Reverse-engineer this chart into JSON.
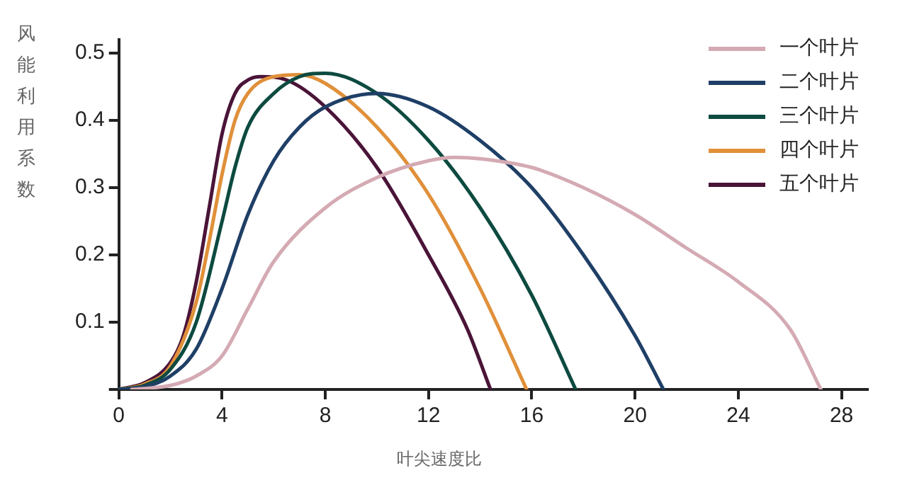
{
  "chart_data": {
    "type": "line",
    "xlabel": "叶尖速度比",
    "ylabel": "风能利用系数",
    "xlim": [
      0,
      29
    ],
    "ylim": [
      0,
      0.52
    ],
    "xticks": [
      0,
      4,
      8,
      12,
      16,
      20,
      24,
      28
    ],
    "yticks": [
      {
        "value": 0,
        "label": null
      },
      0.1,
      0.2,
      0.3,
      0.4,
      0.5
    ],
    "grid": false,
    "legend": "top right",
    "marker": "none",
    "line_style": "solid",
    "series": [
      {
        "name": "一个叶片",
        "color": "#d4aab3",
        "x": [
          0.5,
          2,
          3,
          4,
          5,
          6,
          8,
          10,
          12,
          13,
          14,
          16,
          18,
          20,
          22,
          24,
          26,
          27.2
        ],
        "values": [
          0,
          0.006,
          0.02,
          0.05,
          0.12,
          0.19,
          0.27,
          0.315,
          0.34,
          0.345,
          0.343,
          0.33,
          0.3,
          0.26,
          0.21,
          0.16,
          0.09,
          0
        ]
      },
      {
        "name": "二个叶片",
        "color": "#1f3f66",
        "x": [
          0,
          1,
          2,
          3,
          4,
          5,
          6,
          7,
          8,
          10,
          12,
          14,
          16,
          18,
          20,
          21.1
        ],
        "values": [
          0,
          0.004,
          0.02,
          0.06,
          0.15,
          0.26,
          0.34,
          0.39,
          0.42,
          0.44,
          0.42,
          0.37,
          0.3,
          0.2,
          0.08,
          0
        ]
      },
      {
        "name": "三个叶片",
        "color": "#0d4a40",
        "x": [
          0,
          1,
          2,
          3,
          4,
          4.5,
          5,
          6,
          7,
          8,
          10,
          12,
          14,
          16,
          17.7
        ],
        "values": [
          0,
          0.006,
          0.03,
          0.1,
          0.25,
          0.33,
          0.39,
          0.44,
          0.465,
          0.47,
          0.44,
          0.37,
          0.27,
          0.14,
          0
        ]
      },
      {
        "name": "四个叶片",
        "color": "#e0903a",
        "x": [
          0,
          1,
          2,
          3,
          3.5,
          4,
          4.5,
          5,
          6,
          7,
          8,
          10,
          12,
          14,
          15.8
        ],
        "values": [
          0,
          0.008,
          0.035,
          0.13,
          0.22,
          0.32,
          0.4,
          0.44,
          0.465,
          0.468,
          0.455,
          0.39,
          0.29,
          0.15,
          0
        ]
      },
      {
        "name": "五个叶片",
        "color": "#4a1438",
        "x": [
          0,
          1,
          2,
          2.5,
          3,
          3.5,
          4,
          4.5,
          5,
          5.5,
          6.5,
          8,
          10,
          12,
          13.5,
          14.4
        ],
        "values": [
          0,
          0.01,
          0.04,
          0.08,
          0.16,
          0.27,
          0.38,
          0.44,
          0.46,
          0.465,
          0.46,
          0.42,
          0.33,
          0.2,
          0.09,
          0
        ]
      }
    ]
  }
}
